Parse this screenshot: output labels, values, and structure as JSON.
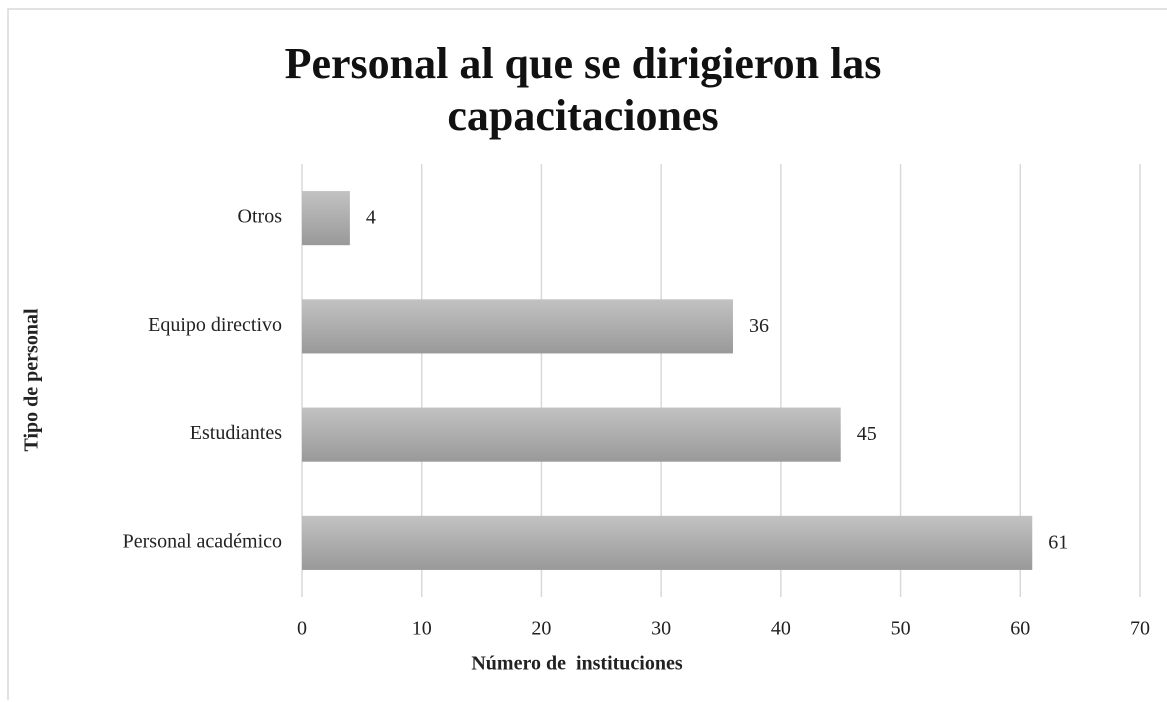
{
  "chart_data": {
    "type": "bar",
    "orientation": "horizontal",
    "title": "Personal al que se dirigieron las capacitaciones",
    "x_label": "Número de  instituciones",
    "y_label": "Tipo de personal",
    "categories": [
      "Otros",
      "Equipo directivo",
      "Estudiantes",
      "Personal académico"
    ],
    "values": [
      4,
      36,
      45,
      61
    ],
    "color": "#a8a8a8",
    "xlim": [
      0,
      70
    ],
    "xticks": [
      0,
      10,
      20,
      30,
      40,
      50,
      60,
      70
    ],
    "grid": true
  }
}
